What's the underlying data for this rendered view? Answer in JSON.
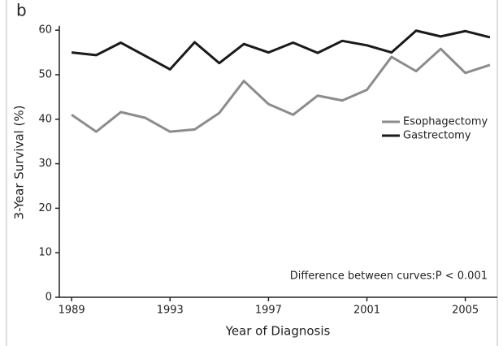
{
  "chart_data": {
    "type": "line",
    "panel_label": "b",
    "x_label": "Year of Diagnosis",
    "y_label": "3-Year Survival (%)",
    "annotation": "Difference between curves:P < 0.001",
    "x": [
      1989,
      1990,
      1991,
      1992,
      1993,
      1994,
      1995,
      1996,
      1997,
      1998,
      1999,
      2000,
      2001,
      2002,
      2003,
      2004,
      2005,
      2006
    ],
    "series": [
      {
        "name": "Esophagectomy",
        "color": "#8c8c8c",
        "values": [
          41,
          37.2,
          41.6,
          40.3,
          37.2,
          37.7,
          41.4,
          48.6,
          43.4,
          41,
          45.3,
          44.2,
          46.6,
          54,
          50.8,
          55.8,
          50.4,
          52.2
        ]
      },
      {
        "name": "Gastrectomy",
        "color": "#1a1a1a",
        "values": [
          55,
          54.4,
          57.2,
          54.2,
          51.2,
          57.3,
          52.6,
          56.9,
          55,
          57.2,
          54.9,
          57.6,
          56.6,
          55,
          59.9,
          58.6,
          59.8,
          58.4
        ]
      }
    ],
    "xlim": [
      1988.5,
      2006.3
    ],
    "xticks": [
      1989,
      1993,
      1997,
      2001,
      2005
    ],
    "ylim": [
      0,
      61
    ],
    "yticks": [
      0,
      10,
      20,
      30,
      40,
      50,
      60
    ],
    "legend": "right"
  }
}
